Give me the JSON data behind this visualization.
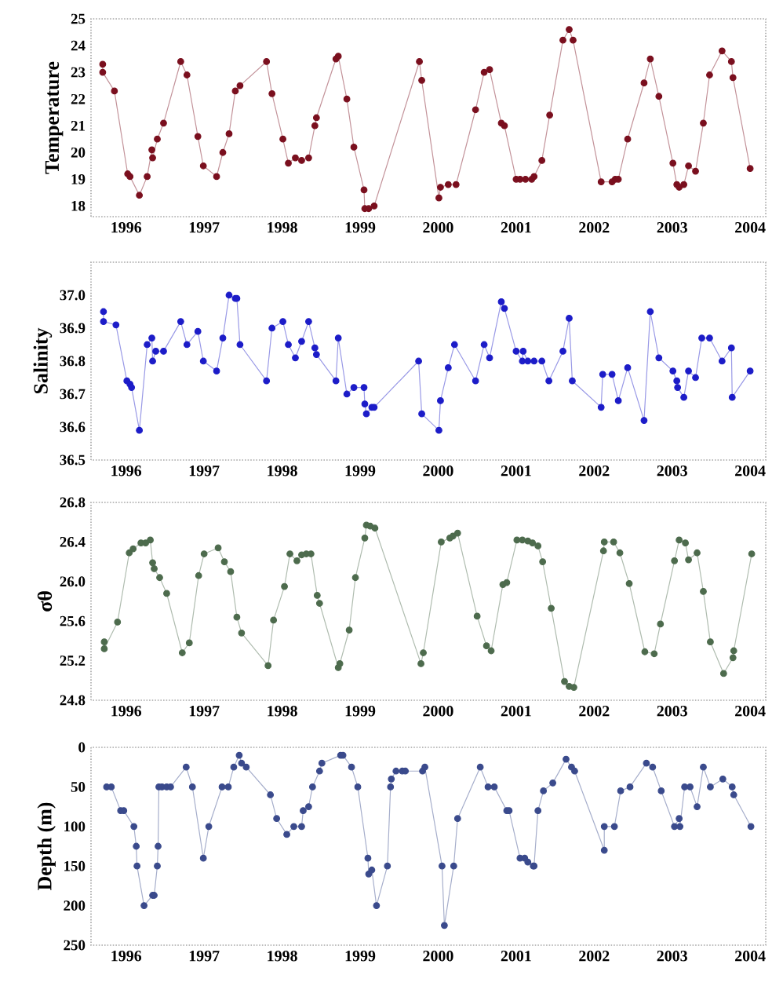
{
  "chart_data": [
    {
      "type": "line",
      "ylabel": "Temperature",
      "marker": "circle",
      "line_style": "solid",
      "color": "#7a0f1e",
      "xlim": [
        1995.55,
        2004.2
      ],
      "ylim": [
        17.6,
        25
      ],
      "xticks": [
        1996,
        1997,
        1998,
        1999,
        2000,
        2001,
        2002,
        2003,
        2004
      ],
      "yticks": [
        18,
        19,
        20,
        21,
        22,
        23,
        24,
        25
      ],
      "x": [
        1995.7,
        1995.7,
        1995.85,
        1996.02,
        1996.05,
        1996.17,
        1996.27,
        1996.33,
        1996.34,
        1996.4,
        1996.48,
        1996.7,
        1996.78,
        1996.92,
        1996.99,
        1997.16,
        1997.24,
        1997.32,
        1997.4,
        1997.46,
        1997.8,
        1997.87,
        1998.01,
        1998.08,
        1998.17,
        1998.25,
        1998.34,
        1998.42,
        1998.44,
        1998.69,
        1998.72,
        1998.83,
        1998.92,
        1999.05,
        1999.06,
        1999.11,
        1999.18,
        1999.76,
        1999.79,
        2000.01,
        2000.03,
        2000.13,
        2000.23,
        2000.48,
        2000.59,
        2000.66,
        2000.81,
        2000.85,
        2001.0,
        2001.05,
        2001.12,
        2001.2,
        2001.23,
        2001.33,
        2001.43,
        2001.6,
        2001.68,
        2001.73,
        2002.09,
        2002.23,
        2002.27,
        2002.31,
        2002.43,
        2002.64,
        2002.72,
        2002.83,
        2003.01,
        2003.06,
        2003.09,
        2003.15,
        2003.21,
        2003.3,
        2003.4,
        2003.48,
        2003.64,
        2003.76,
        2003.78,
        2004.0
      ],
      "values": [
        23.3,
        23.0,
        22.3,
        19.2,
        19.1,
        18.4,
        19.1,
        20.1,
        19.8,
        20.5,
        21.1,
        23.4,
        22.9,
        20.6,
        19.5,
        19.1,
        20.0,
        20.7,
        22.3,
        22.5,
        23.4,
        22.2,
        20.5,
        19.6,
        19.8,
        19.7,
        19.8,
        21.0,
        21.3,
        23.5,
        23.6,
        22.0,
        20.2,
        18.6,
        17.9,
        17.9,
        18.0,
        23.4,
        22.7,
        18.3,
        18.7,
        18.8,
        18.8,
        21.6,
        23.0,
        23.1,
        21.1,
        21.0,
        19.0,
        19.0,
        19.0,
        19.0,
        19.1,
        19.7,
        21.4,
        24.2,
        24.6,
        24.2,
        18.9,
        18.9,
        19.0,
        19.0,
        20.5,
        22.6,
        23.5,
        22.1,
        19.6,
        18.8,
        18.7,
        18.8,
        19.5,
        19.3,
        21.1,
        22.9,
        23.8,
        23.4,
        22.8,
        19.4
      ]
    },
    {
      "type": "line",
      "ylabel": "Salinity",
      "marker": "circle",
      "line_style": "solid",
      "color": "#1c1cc8",
      "xlim": [
        1995.55,
        2004.2
      ],
      "ylim": [
        36.5,
        37.1
      ],
      "xticks": [
        1996,
        1997,
        1998,
        1999,
        2000,
        2001,
        2002,
        2003,
        2004
      ],
      "yticks": [
        {
          "value": 36.5,
          "label": "36.5"
        },
        {
          "value": 36.6,
          "label": "36.6"
        },
        {
          "value": 36.7,
          "label": "36.7"
        },
        {
          "value": 36.8,
          "label": "36.8"
        },
        {
          "value": 36.9,
          "label": "36.9"
        },
        {
          "value": 37.0,
          "label": "37.0"
        }
      ],
      "x": [
        1995.71,
        1995.71,
        1995.87,
        1996.01,
        1996.05,
        1996.07,
        1996.17,
        1996.27,
        1996.33,
        1996.34,
        1996.38,
        1996.48,
        1996.7,
        1996.78,
        1996.92,
        1996.99,
        1997.16,
        1997.24,
        1997.32,
        1997.4,
        1997.42,
        1997.46,
        1997.8,
        1997.87,
        1998.01,
        1998.08,
        1998.17,
        1998.25,
        1998.34,
        1998.42,
        1998.44,
        1998.69,
        1998.72,
        1998.83,
        1998.92,
        1999.05,
        1999.06,
        1999.08,
        1999.15,
        1999.18,
        1999.75,
        1999.79,
        2000.01,
        2000.03,
        2000.13,
        2000.21,
        2000.48,
        2000.59,
        2000.66,
        2000.81,
        2000.85,
        2001.0,
        2001.08,
        2001.09,
        2001.15,
        2001.23,
        2001.33,
        2001.42,
        2001.6,
        2001.68,
        2001.72,
        2002.09,
        2002.11,
        2002.23,
        2002.31,
        2002.43,
        2002.64,
        2002.72,
        2002.83,
        2003.01,
        2003.06,
        2003.07,
        2003.15,
        2003.21,
        2003.3,
        2003.38,
        2003.48,
        2003.64,
        2003.76,
        2003.77,
        2004.0
      ],
      "values": [
        36.95,
        36.92,
        36.91,
        36.74,
        36.73,
        36.72,
        36.59,
        36.85,
        36.87,
        36.8,
        36.83,
        36.83,
        36.92,
        36.85,
        36.89,
        36.8,
        36.77,
        36.87,
        37.0,
        36.99,
        36.99,
        36.85,
        36.74,
        36.9,
        36.92,
        36.85,
        36.81,
        36.86,
        36.92,
        36.84,
        36.82,
        36.74,
        36.87,
        36.7,
        36.72,
        36.72,
        36.67,
        36.64,
        36.66,
        36.66,
        36.8,
        36.64,
        36.59,
        36.68,
        36.78,
        36.85,
        36.74,
        36.85,
        36.81,
        36.98,
        36.96,
        36.83,
        36.8,
        36.83,
        36.8,
        36.8,
        36.8,
        36.74,
        36.83,
        36.93,
        36.74,
        36.66,
        36.76,
        36.76,
        36.68,
        36.78,
        36.62,
        36.95,
        36.81,
        36.77,
        36.74,
        36.72,
        36.69,
        36.77,
        36.75,
        36.87,
        36.87,
        36.8,
        36.84,
        36.69,
        36.77
      ]
    },
    {
      "type": "line",
      "ylabel": "σθ",
      "marker": "circle",
      "line_style": "solid",
      "color": "#4d6b4d",
      "xlim": [
        1995.55,
        2004.2
      ],
      "ylim": [
        24.8,
        26.8
      ],
      "xticks": [
        1996,
        1997,
        1998,
        1999,
        2000,
        2001,
        2002,
        2003,
        2004
      ],
      "yticks": [
        24.8,
        25.2,
        25.6,
        {
          "value": 26.0,
          "label": "26.0"
        },
        26.4,
        26.8
      ],
      "x": [
        1995.72,
        1995.72,
        1995.89,
        1996.04,
        1996.09,
        1996.19,
        1996.25,
        1996.31,
        1996.34,
        1996.36,
        1996.43,
        1996.52,
        1996.72,
        1996.81,
        1996.93,
        1997.0,
        1997.18,
        1997.26,
        1997.34,
        1997.42,
        1997.48,
        1997.82,
        1997.89,
        1998.03,
        1998.1,
        1998.19,
        1998.25,
        1998.31,
        1998.37,
        1998.45,
        1998.48,
        1998.72,
        1998.74,
        1998.86,
        1998.94,
        1999.06,
        1999.08,
        1999.13,
        1999.19,
        1999.78,
        1999.81,
        2000.04,
        2000.15,
        2000.19,
        2000.25,
        2000.5,
        2000.62,
        2000.68,
        2000.83,
        2000.88,
        2001.01,
        2001.08,
        2001.15,
        2001.21,
        2001.28,
        2001.34,
        2001.45,
        2001.62,
        2001.68,
        2001.74,
        2002.12,
        2002.13,
        2002.25,
        2002.33,
        2002.45,
        2002.65,
        2002.77,
        2002.85,
        2003.03,
        2003.09,
        2003.17,
        2003.21,
        2003.32,
        2003.4,
        2003.49,
        2003.66,
        2003.78,
        2003.79,
        2004.02
      ],
      "values": [
        25.39,
        25.32,
        25.59,
        26.29,
        26.33,
        26.39,
        26.39,
        26.42,
        26.19,
        26.13,
        26.04,
        25.88,
        25.28,
        25.38,
        26.06,
        26.28,
        26.34,
        26.2,
        26.1,
        25.64,
        25.48,
        25.15,
        25.61,
        25.95,
        26.28,
        26.21,
        26.27,
        26.28,
        26.28,
        25.86,
        25.78,
        25.13,
        25.17,
        25.51,
        26.04,
        26.44,
        26.57,
        26.56,
        26.54,
        25.17,
        25.28,
        26.4,
        26.44,
        26.46,
        26.49,
        25.65,
        25.35,
        25.3,
        25.97,
        25.99,
        26.42,
        26.42,
        26.41,
        26.39,
        26.36,
        26.2,
        25.73,
        24.99,
        24.94,
        24.93,
        26.31,
        26.4,
        26.4,
        26.29,
        25.98,
        25.29,
        25.27,
        25.57,
        26.21,
        26.42,
        26.39,
        26.22,
        26.29,
        25.9,
        25.39,
        25.07,
        25.23,
        25.3,
        26.28
      ]
    },
    {
      "type": "line",
      "ylabel": "Depth (m)",
      "marker": "circle",
      "line_style": "solid",
      "color": "#3a4a8c",
      "xlim": [
        1995.55,
        2004.2
      ],
      "ylim": [
        250,
        0
      ],
      "xticks": [
        1996,
        1997,
        1998,
        1999,
        2000,
        2001,
        2002,
        2003,
        2004
      ],
      "yticks": [
        0,
        50,
        100,
        150,
        200,
        250
      ],
      "x": [
        1995.75,
        1995.81,
        1995.93,
        1995.97,
        1996.1,
        1996.13,
        1996.14,
        1996.23,
        1996.34,
        1996.36,
        1996.4,
        1996.41,
        1996.42,
        1996.46,
        1996.52,
        1996.57,
        1996.77,
        1996.85,
        1996.99,
        1997.06,
        1997.23,
        1997.31,
        1997.38,
        1997.45,
        1997.48,
        1997.54,
        1997.85,
        1997.93,
        1998.06,
        1998.15,
        1998.25,
        1998.27,
        1998.34,
        1998.39,
        1998.48,
        1998.51,
        1998.75,
        1998.78,
        1998.89,
        1998.97,
        1999.1,
        1999.11,
        1999.15,
        1999.21,
        1999.35,
        1999.39,
        1999.4,
        1999.46,
        1999.54,
        1999.58,
        1999.8,
        1999.83,
        2000.05,
        2000.08,
        2000.2,
        2000.25,
        2000.54,
        2000.64,
        2000.72,
        2000.88,
        2000.91,
        2001.05,
        2001.11,
        2001.15,
        2001.22,
        2001.23,
        2001.28,
        2001.35,
        2001.47,
        2001.64,
        2001.71,
        2001.75,
        2002.13,
        2002.13,
        2002.26,
        2002.34,
        2002.46,
        2002.67,
        2002.75,
        2002.86,
        2003.03,
        2003.09,
        2003.1,
        2003.16,
        2003.23,
        2003.32,
        2003.4,
        2003.49,
        2003.65,
        2003.77,
        2003.79,
        2004.01
      ],
      "values": [
        50,
        50,
        80,
        80,
        100,
        125,
        150,
        200,
        187,
        187,
        150,
        125,
        50,
        50,
        50,
        50,
        25,
        50,
        140,
        100,
        50,
        50,
        25,
        10,
        20,
        25,
        60,
        90,
        110,
        100,
        100,
        80,
        75,
        50,
        30,
        20,
        10,
        10,
        25,
        50,
        140,
        160,
        155,
        200,
        150,
        50,
        40,
        30,
        30,
        30,
        30,
        25,
        150,
        225,
        150,
        90,
        25,
        50,
        50,
        80,
        80,
        140,
        140,
        145,
        150,
        150,
        80,
        55,
        45,
        15,
        25,
        30,
        130,
        100,
        100,
        55,
        50,
        20,
        25,
        55,
        100,
        90,
        100,
        50,
        50,
        75,
        25,
        50,
        40,
        50,
        60,
        100
      ]
    }
  ]
}
